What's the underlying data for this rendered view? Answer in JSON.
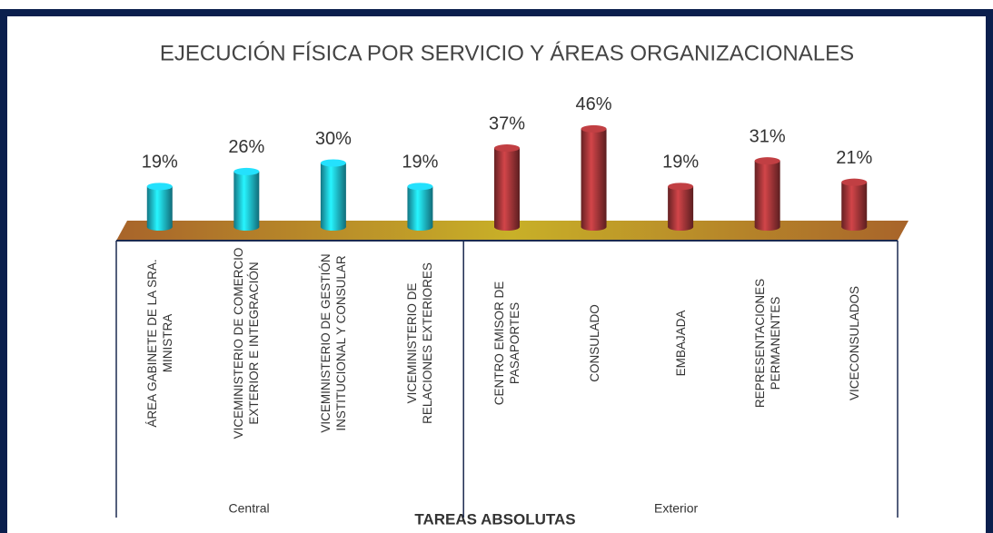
{
  "chart_data": {
    "type": "bar",
    "title": "EJECUCIÓN FÍSICA POR SERVICIO Y ÁREAS ORGANIZACIONALES",
    "x_label": "TAREAS ABSOLUTAS",
    "groups": [
      {
        "name": "Central",
        "color": "#1fc4dc",
        "categories": [
          "ÁREA GABINETE DE LA SRA. MINISTRA",
          "VICEMINISTERIO DE COMERCIO EXTERIOR E INTEGRACIÓN",
          "VICEMINISTERIO DE GESTIÓN INSTITUCIONAL Y CONSULAR",
          "VICEMINISTERIO DE RELACIONES EXTERIORES"
        ],
        "values": [
          19,
          26,
          30,
          19
        ],
        "value_labels": [
          "19%",
          "26%",
          "30%",
          "19%"
        ]
      },
      {
        "name": "Exterior",
        "color": "#a8373a",
        "categories": [
          "CENTRO EMISOR DE PASAPORTES",
          "CONSULADO",
          "EMBAJADA",
          "REPRESENTACIONES PERMANENTES",
          "VICECONSULADOS"
        ],
        "values": [
          37,
          46,
          19,
          31,
          21
        ],
        "value_labels": [
          "37%",
          "46%",
          "19%",
          "31%",
          "21%"
        ]
      }
    ]
  }
}
